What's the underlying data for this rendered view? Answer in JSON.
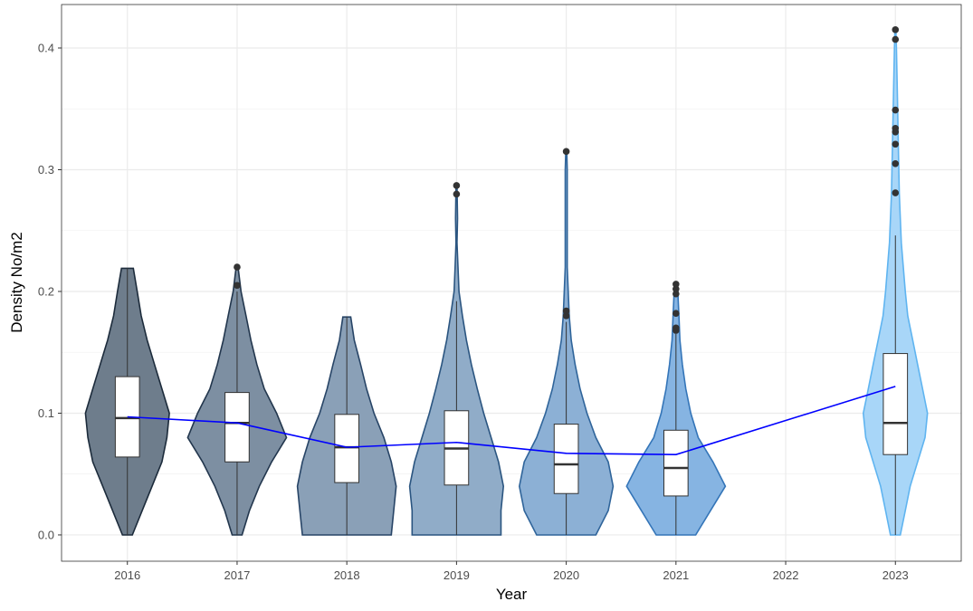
{
  "chart_data": {
    "type": "violin",
    "x_label": "Year",
    "y_label": "Density No/m2",
    "categories": [
      "2016",
      "2017",
      "2018",
      "2019",
      "2020",
      "2021",
      "2022",
      "2023"
    ],
    "ylim": [
      -0.0216,
      0.4357
    ],
    "yticks": [
      {
        "value": 0,
        "label": "0.0"
      },
      0.1,
      0.2,
      0.3,
      0.4
    ],
    "minor_yticks": [
      0.05,
      0.15,
      0.25,
      0.35
    ],
    "grid": true,
    "groups": [
      {
        "category": "2016",
        "fill": "#6e7d8c",
        "outline": "#1c2b3b",
        "density_y": [
          0,
          0.02,
          0.04,
          0.06,
          0.08,
          0.1,
          0.12,
          0.14,
          0.16,
          0.18,
          0.2,
          0.219
        ],
        "density_width": [
          0.1,
          0.3,
          0.5,
          0.7,
          0.8,
          0.85,
          0.7,
          0.55,
          0.4,
          0.28,
          0.2,
          0.12
        ],
        "low": 0,
        "q1": 0.064,
        "median": 0.096,
        "q3": 0.13,
        "high": 0.219,
        "outliers": [],
        "mean": 0.097
      },
      {
        "category": "2017",
        "fill": "#7d8fa2",
        "outline": "#22364d",
        "density_y": [
          0,
          0.02,
          0.04,
          0.06,
          0.08,
          0.1,
          0.12,
          0.14,
          0.16,
          0.18,
          0.2,
          0.22
        ],
        "density_width": [
          0.1,
          0.25,
          0.45,
          0.7,
          1.0,
          0.8,
          0.55,
          0.4,
          0.28,
          0.18,
          0.08,
          0.02
        ],
        "low": 0,
        "q1": 0.06,
        "median": 0.092,
        "q3": 0.117,
        "high": 0.2,
        "outliers": [
          0.205,
          0.22
        ],
        "mean": 0.092
      },
      {
        "category": "2018",
        "fill": "#8aa0b7",
        "outline": "#274466",
        "density_y": [
          0,
          0.02,
          0.04,
          0.06,
          0.08,
          0.1,
          0.12,
          0.14,
          0.16,
          0.179
        ],
        "density_width": [
          0.9,
          0.95,
          1.0,
          0.9,
          0.75,
          0.55,
          0.4,
          0.28,
          0.15,
          0.08
        ],
        "low": 0,
        "q1": 0.043,
        "median": 0.072,
        "q3": 0.099,
        "high": 0.179,
        "outliers": [],
        "mean": 0.072
      },
      {
        "category": "2019",
        "fill": "#90acc8",
        "outline": "#2b5580",
        "density_y": [
          0,
          0.02,
          0.04,
          0.06,
          0.08,
          0.1,
          0.12,
          0.14,
          0.16,
          0.18,
          0.2,
          0.22,
          0.24,
          0.26,
          0.287
        ],
        "density_width": [
          0.9,
          0.9,
          0.95,
          0.85,
          0.7,
          0.55,
          0.42,
          0.3,
          0.2,
          0.12,
          0.05,
          0.03,
          0.01,
          0.02,
          0.01
        ],
        "low": 0,
        "q1": 0.041,
        "median": 0.071,
        "q3": 0.102,
        "high": 0.192,
        "outliers": [
          0.28,
          0.287
        ],
        "mean": 0.076
      },
      {
        "category": "2020",
        "fill": "#8cb0d5",
        "outline": "#2f649a",
        "density_y": [
          0,
          0.02,
          0.04,
          0.06,
          0.08,
          0.1,
          0.12,
          0.14,
          0.16,
          0.18,
          0.2,
          0.22,
          0.26,
          0.3,
          0.315
        ],
        "density_width": [
          0.6,
          0.85,
          0.95,
          0.85,
          0.6,
          0.42,
          0.28,
          0.18,
          0.1,
          0.06,
          0.04,
          0.02,
          0.02,
          0.02,
          0.01
        ],
        "low": 0,
        "q1": 0.034,
        "median": 0.058,
        "q3": 0.091,
        "high": 0.175,
        "outliers": [
          0.18,
          0.184,
          0.315
        ],
        "mean": 0.067
      },
      {
        "category": "2021",
        "fill": "#86b4e2",
        "outline": "#3475b8",
        "density_y": [
          0,
          0.02,
          0.04,
          0.06,
          0.08,
          0.1,
          0.12,
          0.14,
          0.16,
          0.18,
          0.206
        ],
        "density_width": [
          0.4,
          0.7,
          1.0,
          0.75,
          0.45,
          0.3,
          0.2,
          0.13,
          0.08,
          0.06,
          0.03
        ],
        "low": 0,
        "q1": 0.032,
        "median": 0.055,
        "q3": 0.086,
        "high": 0.165,
        "outliers": [
          0.168,
          0.17,
          0.182,
          0.198,
          0.202,
          0.206
        ],
        "mean": 0.066
      },
      {
        "category": "2023",
        "fill": "#a8d6f8",
        "outline": "#5fb4f0",
        "density_y": [
          0,
          0.02,
          0.04,
          0.06,
          0.08,
          0.1,
          0.12,
          0.14,
          0.16,
          0.18,
          0.2,
          0.24,
          0.28,
          0.32,
          0.36,
          0.4,
          0.415
        ],
        "density_width": [
          0.1,
          0.2,
          0.3,
          0.45,
          0.6,
          0.65,
          0.55,
          0.45,
          0.35,
          0.25,
          0.2,
          0.12,
          0.08,
          0.06,
          0.04,
          0.02,
          0.01
        ],
        "low": 0,
        "q1": 0.066,
        "median": 0.092,
        "q3": 0.149,
        "high": 0.246,
        "outliers": [
          0.281,
          0.305,
          0.321,
          0.331,
          0.334,
          0.349,
          0.407,
          0.415
        ],
        "mean": 0.122
      }
    ],
    "mean_color": "#0000ff"
  }
}
